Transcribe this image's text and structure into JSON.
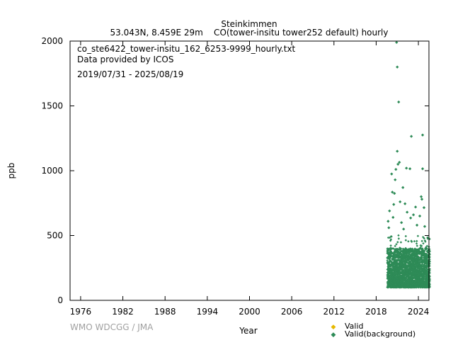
{
  "chart_data": {
    "type": "scatter",
    "title": "Steinkimmen",
    "subtitle": "53.043N, 8.459E 29m    CO(tower-insitu tower252 default) hourly",
    "annotations": [
      "co_ste6422_tower-insitu_162_6253-9999_hourly.txt",
      "Data provided by ICOS",
      "2019/07/31 - 2025/08/19"
    ],
    "xlabel": "Year",
    "ylabel": "ppb",
    "xlim": [
      1974.5,
      2025.5
    ],
    "ylim": [
      0,
      2000
    ],
    "xticks": [
      1976,
      1982,
      1988,
      1994,
      2000,
      2006,
      2012,
      2018,
      2024
    ],
    "yticks": [
      0,
      500,
      1000,
      1500,
      2000
    ],
    "grid": false,
    "legend_position": "bottom-right",
    "credit": "WMO WDCGG / JMA",
    "series": [
      {
        "name": "Valid",
        "color": "#e6b800",
        "points": []
      },
      {
        "name": "Valid(background)",
        "color": "#2e8b57",
        "data_range": [
          "2019/07/31",
          "2025/08/19"
        ],
        "typical_range": [
          100,
          400
        ],
        "points": [
          [
            2020.9,
            1990
          ],
          [
            2021.0,
            1800
          ],
          [
            2021.2,
            1530
          ],
          [
            2023.0,
            1265
          ],
          [
            2024.6,
            1275
          ],
          [
            2021.0,
            1150
          ],
          [
            2021.3,
            1065
          ],
          [
            2021.1,
            1050
          ],
          [
            2020.8,
            1010
          ],
          [
            2022.3,
            1020
          ],
          [
            2022.8,
            1015
          ],
          [
            2024.6,
            1015
          ],
          [
            2020.2,
            975
          ],
          [
            2020.7,
            930
          ],
          [
            2021.8,
            870
          ],
          [
            2020.3,
            835
          ],
          [
            2020.6,
            825
          ],
          [
            2024.4,
            800
          ],
          [
            2024.5,
            780
          ],
          [
            2021.4,
            760
          ],
          [
            2020.5,
            740
          ],
          [
            2022.1,
            745
          ],
          [
            2023.6,
            720
          ],
          [
            2024.8,
            715
          ],
          [
            2019.9,
            690
          ],
          [
            2022.4,
            680
          ],
          [
            2023.3,
            660
          ],
          [
            2024.2,
            650
          ],
          [
            2020.4,
            640
          ],
          [
            2022.9,
            635
          ],
          [
            2019.7,
            610
          ],
          [
            2021.6,
            600
          ],
          [
            2023.8,
            580
          ],
          [
            2024.9,
            570
          ],
          [
            2019.8,
            560
          ],
          [
            2021.9,
            550
          ]
        ]
      }
    ]
  }
}
